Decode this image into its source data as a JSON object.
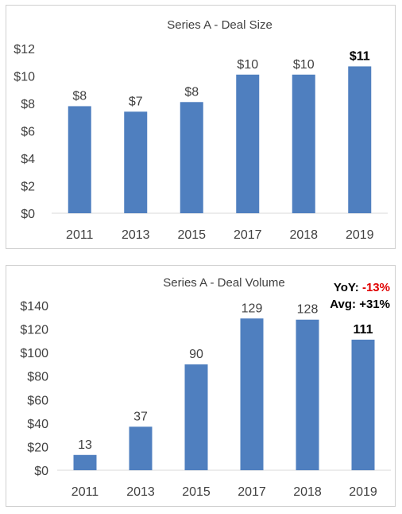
{
  "colors": {
    "bar": "#4f7fbf",
    "axis": "#d9d9d9",
    "text": "#404040",
    "negative": "#e00000"
  },
  "chart_data": [
    {
      "type": "bar",
      "title": "Series A - Deal Size",
      "categories": [
        "2011",
        "2013",
        "2015",
        "2017",
        "2018",
        "2019"
      ],
      "values": [
        7.8,
        7.4,
        8.1,
        10.1,
        10.1,
        10.7
      ],
      "data_labels": [
        "$8",
        "$7",
        "$8",
        "$10",
        "$10",
        "$11"
      ],
      "bold_labels": [
        false,
        false,
        false,
        false,
        false,
        true
      ],
      "yticks": [
        "$0",
        "$2",
        "$4",
        "$6",
        "$8",
        "$10",
        "$12"
      ],
      "ylim": [
        0,
        12
      ],
      "xlabel": "",
      "ylabel": "",
      "grid": false
    },
    {
      "type": "bar",
      "title": "Series A - Deal Volume",
      "categories": [
        "2011",
        "2013",
        "2015",
        "2017",
        "2018",
        "2019"
      ],
      "values": [
        13,
        37,
        90,
        129,
        128,
        111
      ],
      "data_labels": [
        "13",
        "37",
        "90",
        "129",
        "128",
        "111"
      ],
      "bold_labels": [
        false,
        false,
        false,
        false,
        false,
        true
      ],
      "yticks": [
        "$0",
        "$20",
        "$40",
        "$60",
        "$80",
        "$100",
        "$120",
        "$140"
      ],
      "ylim": [
        0,
        140
      ],
      "xlabel": "",
      "ylabel": "",
      "grid": false,
      "annotation": {
        "yoy_label": "YoY:",
        "yoy_value": "-13%",
        "avg_label": "Avg:",
        "avg_value": "+31%"
      }
    }
  ]
}
